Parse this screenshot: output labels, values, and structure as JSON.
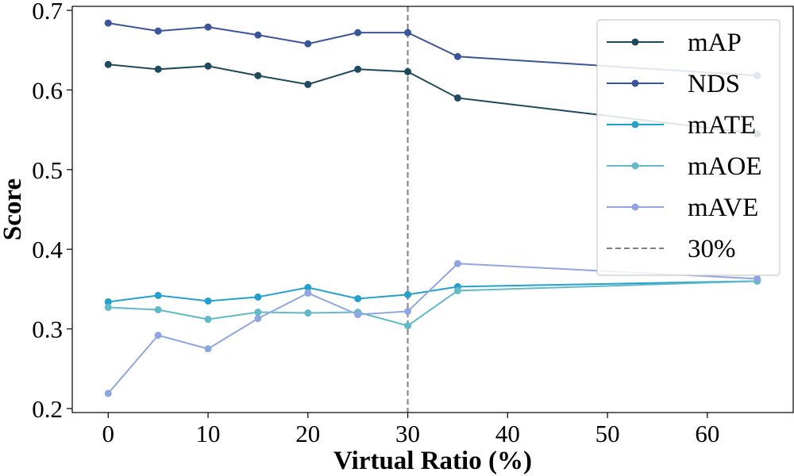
{
  "chart_data": {
    "type": "line",
    "xlabel": "Virtual Ratio (%)",
    "ylabel": "Score",
    "xlim": [
      -3.6,
      68.6
    ],
    "ylim": [
      0.195,
      0.705
    ],
    "xticks": [
      0,
      10,
      20,
      30,
      40,
      50,
      60
    ],
    "yticks": [
      0.2,
      0.3,
      0.4,
      0.5,
      0.6,
      0.7
    ],
    "grid": false,
    "legend_position": "top-right",
    "x": [
      0,
      5,
      10,
      15,
      20,
      25,
      30,
      35,
      65
    ],
    "series": [
      {
        "name": "mAP",
        "color": "#1f4a5e",
        "values": [
          0.632,
          0.626,
          0.63,
          0.618,
          0.607,
          0.626,
          0.623,
          0.59,
          0.545
        ]
      },
      {
        "name": "NDS",
        "color": "#3a5599",
        "values": [
          0.684,
          0.674,
          0.679,
          0.669,
          0.658,
          0.672,
          0.672,
          0.642,
          0.618
        ]
      },
      {
        "name": "mATE",
        "color": "#24a0cc",
        "values": [
          0.334,
          0.342,
          0.335,
          0.34,
          0.352,
          0.338,
          0.343,
          0.353,
          0.36
        ]
      },
      {
        "name": "mAOE",
        "color": "#62b9c8",
        "values": [
          0.327,
          0.324,
          0.312,
          0.321,
          0.32,
          0.321,
          0.304,
          0.348,
          0.36
        ]
      },
      {
        "name": "mAVE",
        "color": "#8fa6e0",
        "values": [
          0.219,
          0.292,
          0.275,
          0.313,
          0.345,
          0.318,
          0.322,
          0.382,
          0.363
        ]
      }
    ],
    "annotations": [
      {
        "type": "vline",
        "x": 30,
        "label": "30%",
        "color": "#808080",
        "style": "dashed"
      }
    ]
  }
}
